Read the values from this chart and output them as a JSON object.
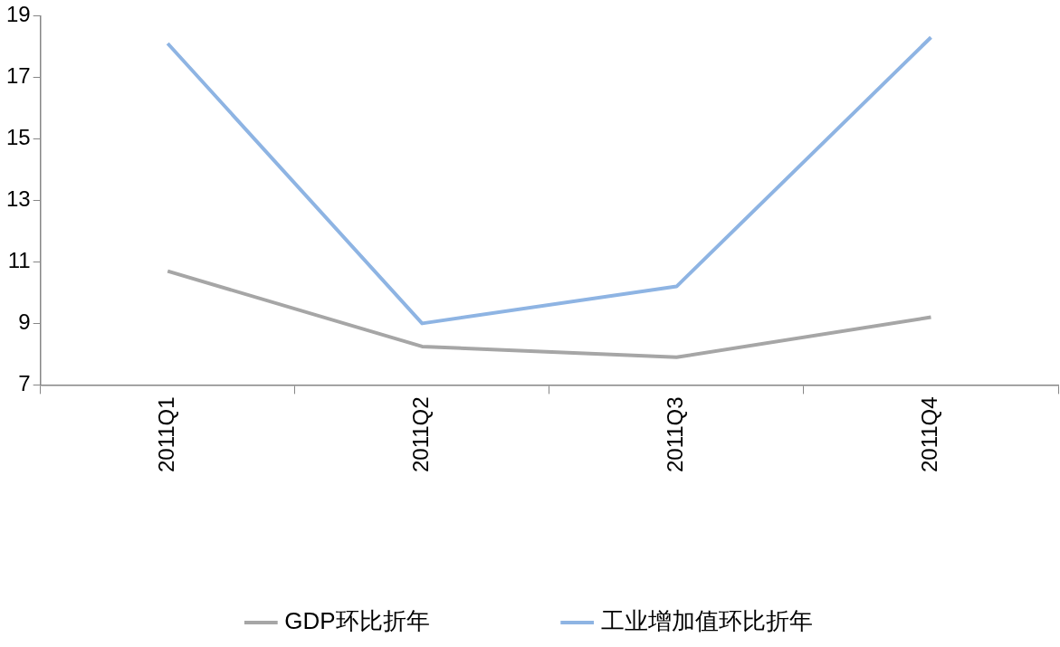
{
  "chart_data": {
    "type": "line",
    "categories": [
      "2011Q1",
      "2011Q2",
      "2011Q3",
      "2011Q4"
    ],
    "series": [
      {
        "name": "GDP环比折年",
        "color": "#a6a6a6",
        "values": [
          10.7,
          8.25,
          7.9,
          9.2
        ]
      },
      {
        "name": "工业增加值环比折年",
        "color": "#8eb4e3",
        "values": [
          18.1,
          9.0,
          10.2,
          18.3
        ]
      }
    ],
    "ylim": [
      7,
      19
    ],
    "yticks": [
      7,
      9,
      11,
      13,
      15,
      17,
      19
    ],
    "grid": false,
    "legend": "bottom",
    "marker": "none",
    "line_style": "solid"
  }
}
